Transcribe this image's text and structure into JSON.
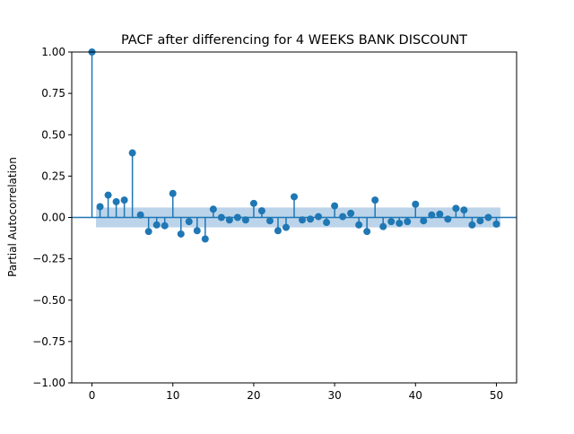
{
  "chart_data": {
    "type": "stem",
    "title": "PACF after differencing for 4 WEEKS BANK DISCOUNT",
    "xlabel": "",
    "ylabel": "Partial Autocorrelation",
    "xlim": [
      -2.5,
      52.5
    ],
    "ylim": [
      -1.0,
      1.0
    ],
    "x_ticks": [
      0,
      10,
      20,
      30,
      40,
      50
    ],
    "y_ticks": [
      1.0,
      0.75,
      0.5,
      0.25,
      0.0,
      -0.25,
      -0.5,
      -0.75,
      -1.0
    ],
    "y_tick_labels": [
      "1.00",
      "0.75",
      "0.50",
      "0.25",
      "0.00",
      "−0.25",
      "−0.50",
      "−0.75",
      "−1.00"
    ],
    "lags": [
      0,
      1,
      2,
      3,
      4,
      5,
      6,
      7,
      8,
      9,
      10,
      11,
      12,
      13,
      14,
      15,
      16,
      17,
      18,
      19,
      20,
      21,
      22,
      23,
      24,
      25,
      26,
      27,
      28,
      29,
      30,
      31,
      32,
      33,
      34,
      35,
      36,
      37,
      38,
      39,
      40,
      41,
      42,
      43,
      44,
      45,
      46,
      47,
      48,
      49,
      50
    ],
    "values": [
      1.0,
      0.065,
      0.135,
      0.095,
      0.105,
      0.39,
      0.015,
      -0.085,
      -0.045,
      -0.05,
      0.145,
      -0.1,
      -0.025,
      -0.08,
      -0.13,
      0.05,
      0.0,
      -0.015,
      0.0,
      -0.015,
      0.085,
      0.04,
      -0.02,
      -0.08,
      -0.06,
      0.125,
      -0.015,
      -0.01,
      0.005,
      -0.03,
      0.07,
      0.005,
      0.025,
      -0.045,
      -0.085,
      0.105,
      -0.055,
      -0.025,
      -0.035,
      -0.025,
      0.08,
      -0.02,
      0.015,
      0.02,
      -0.01,
      0.055,
      0.045,
      -0.045,
      -0.02,
      0.0,
      -0.04
    ],
    "confidence_band": 0.06,
    "colors": {
      "stem": "#1f77b4",
      "band": "#b0cce6",
      "baseline": "#1f77b4"
    },
    "grid": false
  }
}
